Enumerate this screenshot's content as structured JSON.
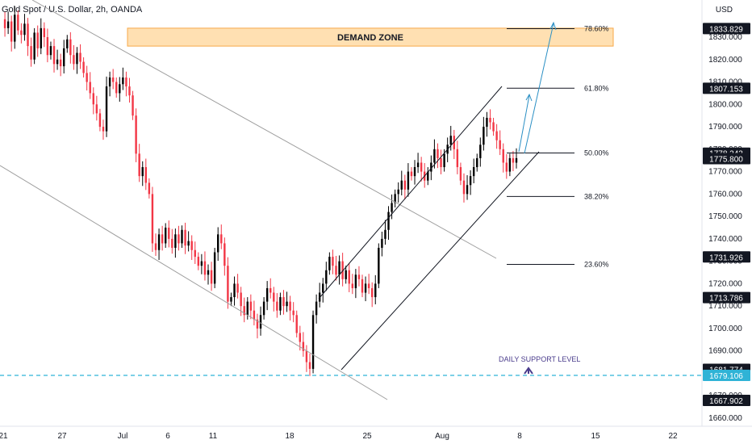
{
  "header": {
    "symbol_title": "Gold Spot / U.S. Dollar, 2h, OANDA",
    "currency": "USD"
  },
  "colors": {
    "up": "#000000",
    "down": "#f23645",
    "zone_fill": "#ffe0b2",
    "zone_border": "#f7a94a",
    "support_line": "#2fb3d6",
    "fib_arrow": "#2a8fc4",
    "support_text": "#4a3c8c"
  },
  "annotations": {
    "demand_zone_label": "DEMAND ZONE",
    "support_label": "DAILY SUPPORT LEVEL"
  },
  "chart_data": {
    "type": "candlestick",
    "title": "Gold Spot / U.S. Dollar, 2h, OANDA",
    "ylabel": "USD",
    "ylim": [
      1655,
      1845
    ],
    "y_ticks": [
      "1660.000",
      "1670.000",
      "1680.000",
      "1690.000",
      "1700.000",
      "1710.000",
      "1720.000",
      "1730.000",
      "1740.000",
      "1750.000",
      "1760.000",
      "1770.000",
      "1780.000",
      "1790.000",
      "1800.000",
      "1810.000",
      "1820.000",
      "1830.000"
    ],
    "x_ticks": [
      "21",
      "27",
      "Jul",
      "6",
      "11",
      "18",
      "25",
      "Aug",
      "8",
      "15",
      "22"
    ],
    "price_labels": [
      {
        "value": "1833.829",
        "price": 1833.829,
        "style": "dark"
      },
      {
        "value": "1807.153",
        "price": 1807.153,
        "style": "dark"
      },
      {
        "value": "1778.243",
        "price": 1778.243,
        "style": "dark"
      },
      {
        "value": "1775.800",
        "price": 1775.8,
        "style": "dark"
      },
      {
        "value": "1731.926",
        "price": 1731.926,
        "style": "dark"
      },
      {
        "value": "1713.786",
        "price": 1713.786,
        "style": "dark"
      },
      {
        "value": "1681.774",
        "price": 1681.774,
        "style": "dark"
      },
      {
        "value": "1679.106",
        "price": 1679.106,
        "style": "blue"
      },
      {
        "value": "1667.902",
        "price": 1667.902,
        "style": "dark"
      }
    ],
    "fib_levels": [
      {
        "label": "78.60%",
        "price": 1833.8
      },
      {
        "label": "61.80%",
        "price": 1807.2
      },
      {
        "label": "50.00%",
        "price": 1778.3
      },
      {
        "label": "38.20%",
        "price": 1758.9
      },
      {
        "label": "23.60%",
        "price": 1728.6
      }
    ],
    "demand_zone": {
      "low": 1826,
      "high": 1834
    },
    "support_level": 1679.1,
    "candles_close_path": [
      1838,
      1834,
      1837,
      1828,
      1840,
      1833,
      1831,
      1836,
      1826,
      1820,
      1832,
      1825,
      1834,
      1830,
      1822,
      1826,
      1818,
      1820,
      1817,
      1825,
      1829,
      1822,
      1818,
      1823,
      1819,
      1814,
      1810,
      1805,
      1800,
      1796,
      1790,
      1788,
      1808,
      1812,
      1810,
      1805,
      1809,
      1812,
      1808,
      1804,
      1795,
      1778,
      1768,
      1772,
      1765,
      1760,
      1738,
      1735,
      1742,
      1738,
      1745,
      1740,
      1736,
      1742,
      1738,
      1744,
      1737,
      1739,
      1735,
      1732,
      1728,
      1730,
      1724,
      1726,
      1720,
      1734,
      1742,
      1738,
      1728,
      1712,
      1714,
      1720,
      1716,
      1710,
      1706,
      1712,
      1708,
      1704,
      1700,
      1706,
      1712,
      1718,
      1716,
      1712,
      1708,
      1714,
      1710,
      1712,
      1708,
      1706,
      1698,
      1694,
      1690,
      1685,
      1682,
      1706,
      1712,
      1716,
      1720,
      1726,
      1732,
      1728,
      1724,
      1730,
      1722,
      1726,
      1720,
      1718,
      1724,
      1722,
      1716,
      1720,
      1718,
      1714,
      1720,
      1736,
      1740,
      1744,
      1752,
      1756,
      1760,
      1762,
      1766,
      1762,
      1770,
      1768,
      1772,
      1774,
      1770,
      1766,
      1770,
      1774,
      1780,
      1776,
      1772,
      1778,
      1782,
      1786,
      1780,
      1772,
      1766,
      1760,
      1764,
      1768,
      1772,
      1776,
      1782,
      1790,
      1794,
      1792,
      1788,
      1784,
      1780,
      1774,
      1770,
      1776,
      1774,
      1776
    ]
  }
}
